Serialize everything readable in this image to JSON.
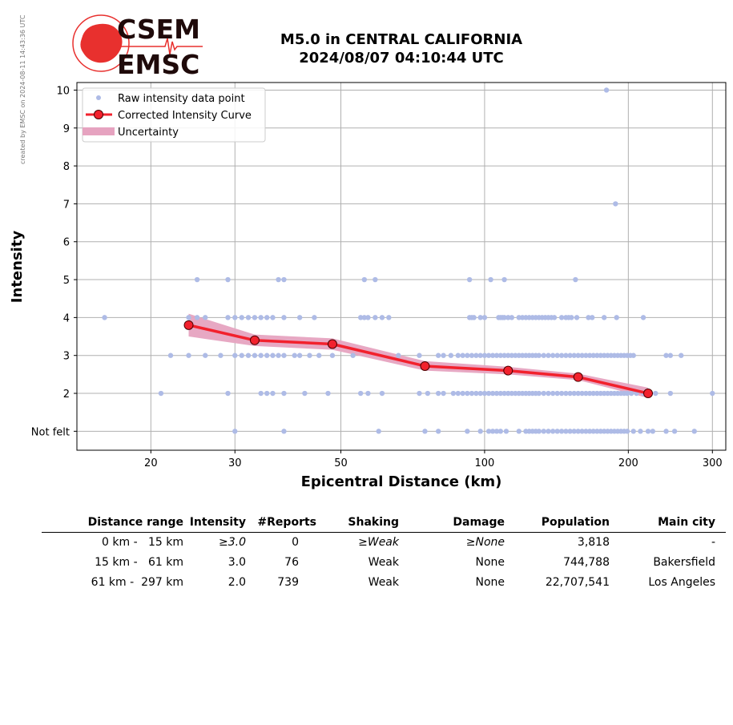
{
  "credit": "created by EMSC on 2024-08-11 14:43:36 UTC",
  "logo": {
    "top_text": "CSEM",
    "bottom_text": "EMSC",
    "colors": {
      "red": "#e8302e",
      "dark": "#1f0a0a"
    }
  },
  "title": {
    "line1": "M5.0 in CENTRAL CALIFORNIA",
    "line2": "2024/08/07 04:10:44 UTC"
  },
  "chart_data": {
    "type": "scatter",
    "xlabel": "Epicentral Distance (km)",
    "ylabel": "Intensity",
    "x_scale": "log",
    "xlim": [
      14,
      320
    ],
    "ylim": [
      0.5,
      10.2
    ],
    "x_ticks": [
      20,
      30,
      50,
      100,
      200,
      300
    ],
    "x_tick_labels": [
      "20",
      "30",
      "50",
      "100",
      "200",
      "300"
    ],
    "y_ticks": [
      1,
      2,
      3,
      4,
      5,
      6,
      7,
      8,
      9,
      10
    ],
    "y_tick_labels": [
      "Not felt",
      "2",
      "3",
      "4",
      "5",
      "6",
      "7",
      "8",
      "9",
      "10"
    ],
    "grid": true,
    "legend_position": "top-left",
    "legend": [
      "Raw intensity data point",
      "Corrected Intensity Curve",
      "Uncertainty"
    ],
    "colors": {
      "raw": "#aebbe6",
      "curve": "#f2212d",
      "marker_edge": "#4a0000",
      "uncertainty": "#e6a3c0"
    },
    "raw_points": {
      "10": [
        180
      ],
      "7": [
        188
      ],
      "5": [
        25,
        29,
        37,
        38,
        56,
        59,
        93,
        103,
        110,
        155
      ],
      "4": [
        16,
        24,
        25,
        26,
        29,
        30,
        31,
        32,
        33,
        34,
        35,
        36,
        38,
        41,
        44,
        55,
        56,
        57,
        59,
        61,
        63,
        93,
        94,
        95,
        98,
        100,
        107,
        108,
        109,
        110,
        112,
        114,
        118,
        120,
        122,
        124,
        126,
        128,
        130,
        132,
        134,
        136,
        138,
        140,
        145,
        148,
        150,
        152,
        156,
        165,
        168,
        178,
        189,
        215
      ],
      "3": [
        22,
        24,
        26,
        28,
        30,
        31,
        32,
        33,
        34,
        35,
        36,
        37,
        38,
        40,
        41,
        43,
        45,
        48,
        53,
        66,
        73,
        80,
        82,
        85,
        88,
        90,
        92,
        94,
        96,
        98,
        100,
        102,
        104,
        106,
        108,
        110,
        112,
        114,
        116,
        118,
        120,
        122,
        124,
        126,
        128,
        130,
        133,
        136,
        139,
        142,
        145,
        148,
        151,
        154,
        157,
        160,
        163,
        166,
        169,
        172,
        175,
        178,
        181,
        184,
        187,
        190,
        193,
        196,
        199,
        202,
        205,
        240,
        245,
        258
      ],
      "2": [
        21,
        29,
        34,
        35,
        36,
        38,
        42,
        47,
        55,
        57,
        61,
        73,
        76,
        80,
        82,
        86,
        88,
        90,
        92,
        94,
        96,
        98,
        100,
        102,
        104,
        106,
        108,
        110,
        112,
        114,
        116,
        118,
        120,
        122,
        124,
        126,
        128,
        130,
        133,
        136,
        139,
        142,
        145,
        148,
        151,
        154,
        157,
        160,
        163,
        166,
        169,
        172,
        175,
        178,
        181,
        184,
        187,
        190,
        193,
        196,
        199,
        203,
        208,
        215,
        228,
        245,
        300
      ],
      "1": [
        30,
        38,
        60,
        75,
        80,
        92,
        98,
        102,
        104,
        106,
        108,
        111,
        118,
        122,
        124,
        126,
        128,
        130,
        133,
        136,
        139,
        142,
        145,
        148,
        151,
        154,
        157,
        160,
        163,
        166,
        169,
        172,
        175,
        178,
        181,
        184,
        187,
        190,
        193,
        196,
        199,
        205,
        212,
        220,
        225,
        240,
        250,
        275
      ]
    },
    "curve": [
      {
        "x": 24,
        "y": 3.8,
        "lo": 3.5,
        "hi": 4.1
      },
      {
        "x": 33,
        "y": 3.4,
        "lo": 3.25,
        "hi": 3.55
      },
      {
        "x": 48,
        "y": 3.3,
        "lo": 3.15,
        "hi": 3.45
      },
      {
        "x": 75,
        "y": 2.72,
        "lo": 2.6,
        "hi": 2.85
      },
      {
        "x": 112,
        "y": 2.6,
        "lo": 2.5,
        "hi": 2.7
      },
      {
        "x": 157,
        "y": 2.43,
        "lo": 2.35,
        "hi": 2.52
      },
      {
        "x": 220,
        "y": 2.0,
        "lo": 1.88,
        "hi": 2.15
      }
    ]
  },
  "table": {
    "headers": {
      "range": "Distance range",
      "intensity": "Intensity",
      "reports": "#Reports",
      "shaking": "Shaking",
      "damage": "Damage",
      "population": "Population",
      "city": "Main city"
    },
    "rows": [
      {
        "range": "0 km -   15 km",
        "intensity": "≥3.0",
        "reports": "0",
        "shaking": "≥Weak",
        "damage": "≥None",
        "population": "3,818",
        "city": "-"
      },
      {
        "range": "15 km -   61 km",
        "intensity": "3.0",
        "reports": "76",
        "shaking": "Weak",
        "damage": "None",
        "population": "744,788",
        "city": "Bakersfield"
      },
      {
        "range": "61 km -  297 km",
        "intensity": "2.0",
        "reports": "739",
        "shaking": "Weak",
        "damage": "None",
        "population": "22,707,541",
        "city": "Los Angeles"
      }
    ]
  }
}
